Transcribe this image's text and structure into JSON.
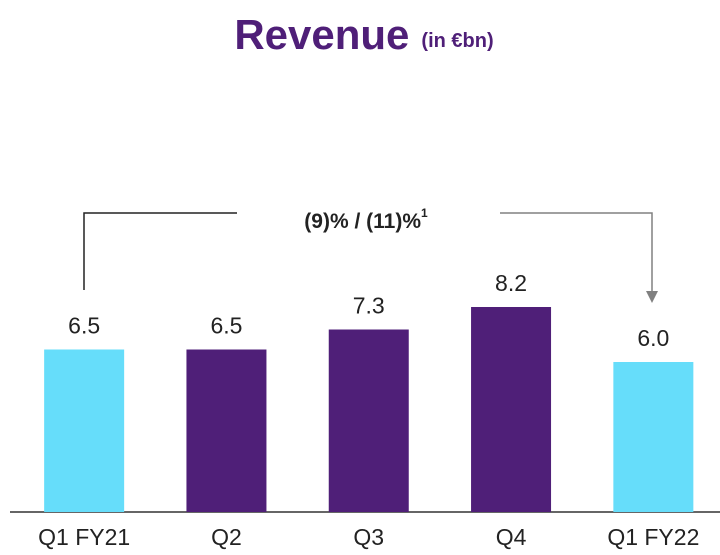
{
  "chart_data": {
    "type": "bar",
    "title": "Revenue",
    "subtitle": "(in €bn)",
    "annotation": "(9)% / (11)%",
    "annotation_note": "1",
    "categories": [
      "Q1 FY21",
      "Q2",
      "Q3",
      "Q4",
      "Q1 FY22"
    ],
    "values": [
      6.5,
      6.5,
      7.3,
      8.2,
      6.0
    ],
    "value_labels": [
      "6.5",
      "6.5",
      "7.3",
      "8.2",
      "6.0"
    ],
    "colors": [
      "#66ddfa",
      "#4f1f78",
      "#4f1f78",
      "#4f1f78",
      "#66ddfa"
    ]
  }
}
